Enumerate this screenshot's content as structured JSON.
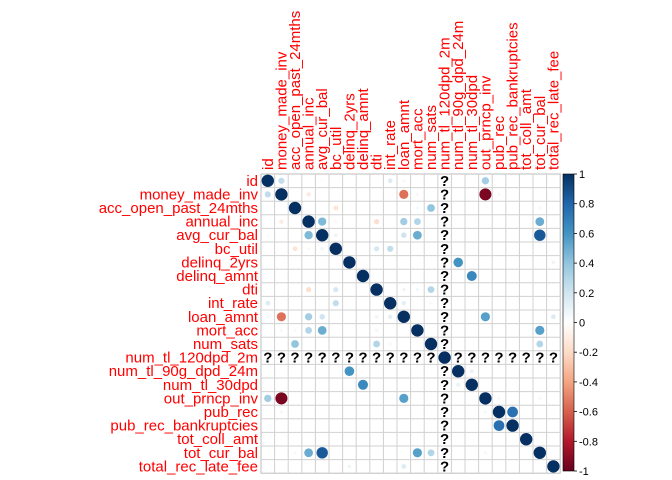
{
  "chart_data": {
    "type": "heatmap",
    "style": "circle-correlation-matrix",
    "variables": [
      "id",
      "money_made_inv",
      "acc_open_past_24mths",
      "annual_inc",
      "avg_cur_bal",
      "bc_util",
      "delinq_2yrs",
      "delinq_amnt",
      "dti",
      "int_rate",
      "loan_amnt",
      "mort_acc",
      "num_sats",
      "num_tl_120dpd_2m",
      "num_tl_90g_dpd_24m",
      "num_tl_30dpd",
      "out_prncp_inv",
      "pub_rec",
      "pub_rec_bankruptcies",
      "tot_coll_amt",
      "tot_cur_bal",
      "total_rec_late_fee"
    ],
    "na_variable": "num_tl_120dpd_2m",
    "na_symbol": "?",
    "grid": true,
    "colorbar": {
      "range": [
        -1,
        1
      ],
      "ticks": [
        "1",
        "0.8",
        "0.6",
        "0.4",
        "0.2",
        "0",
        "-0.2",
        "-0.4",
        "-0.6",
        "-0.8",
        "-1"
      ],
      "stops": [
        "#67001f",
        "#b2182b",
        "#d6604d",
        "#f4a582",
        "#fddbc7",
        "#ffffff",
        "#d1e5f0",
        "#92c5de",
        "#4393c3",
        "#2166ac",
        "#053061"
      ],
      "position": "right"
    },
    "correlations": [
      [
        "id",
        "money_made_inv",
        0.25
      ],
      [
        "id",
        "avg_cur_bal",
        0.02
      ],
      [
        "id",
        "int_rate",
        0.15
      ],
      [
        "id",
        "loan_amnt",
        0.05
      ],
      [
        "id",
        "out_prncp_inv",
        0.35
      ],
      [
        "money_made_inv",
        "annual_inc",
        -0.12
      ],
      [
        "money_made_inv",
        "loan_amnt",
        -0.55
      ],
      [
        "money_made_inv",
        "mort_acc",
        -0.05
      ],
      [
        "money_made_inv",
        "out_prncp_inv",
        -0.95
      ],
      [
        "money_made_inv",
        "pub_rec",
        -0.05
      ],
      [
        "acc_open_past_24mths",
        "bc_util",
        -0.15
      ],
      [
        "acc_open_past_24mths",
        "num_sats",
        0.4
      ],
      [
        "acc_open_past_24mths",
        "mort_acc",
        0.05
      ],
      [
        "acc_open_past_24mths",
        "tot_cur_bal",
        0.05
      ],
      [
        "annual_inc",
        "avg_cur_bal",
        0.45
      ],
      [
        "annual_inc",
        "dti",
        -0.18
      ],
      [
        "annual_inc",
        "loan_amnt",
        0.35
      ],
      [
        "annual_inc",
        "mort_acc",
        0.3
      ],
      [
        "annual_inc",
        "tot_cur_bal",
        0.5
      ],
      [
        "avg_cur_bal",
        "loan_amnt",
        0.2
      ],
      [
        "avg_cur_bal",
        "mort_acc",
        0.5
      ],
      [
        "avg_cur_bal",
        "tot_cur_bal",
        0.85
      ],
      [
        "bc_util",
        "dti",
        0.18
      ],
      [
        "bc_util",
        "int_rate",
        0.25
      ],
      [
        "bc_util",
        "avg_cur_bal",
        0.08
      ],
      [
        "delinq_2yrs",
        "num_tl_90g_dpd_24m",
        0.6
      ],
      [
        "delinq_amnt",
        "num_tl_30dpd",
        0.65
      ],
      [
        "dti",
        "num_sats",
        0.3
      ],
      [
        "dti",
        "loan_amnt",
        0.08
      ],
      [
        "dti",
        "mort_acc",
        0.06
      ],
      [
        "int_rate",
        "loan_amnt",
        0.12
      ],
      [
        "loan_amnt",
        "out_prncp_inv",
        0.55
      ],
      [
        "loan_amnt",
        "total_rec_late_fee",
        0.15
      ],
      [
        "mort_acc",
        "tot_cur_bal",
        0.55
      ],
      [
        "num_sats",
        "tot_cur_bal",
        0.3
      ],
      [
        "pub_rec",
        "pub_rec_bankruptcies",
        0.75
      ],
      [
        "delinq_2yrs",
        "total_rec_late_fee",
        0.08
      ],
      [
        "out_prncp_inv",
        "tot_cur_bal",
        0.05
      ],
      [
        "out_prncp_inv",
        "pub_rec",
        0.05
      ],
      [
        "int_rate",
        "num_sats",
        0.05
      ],
      [
        "bc_util",
        "annual_inc",
        -0.05
      ],
      [
        "num_tl_90g_dpd_24m",
        "num_tl_30dpd",
        0.1
      ]
    ]
  }
}
